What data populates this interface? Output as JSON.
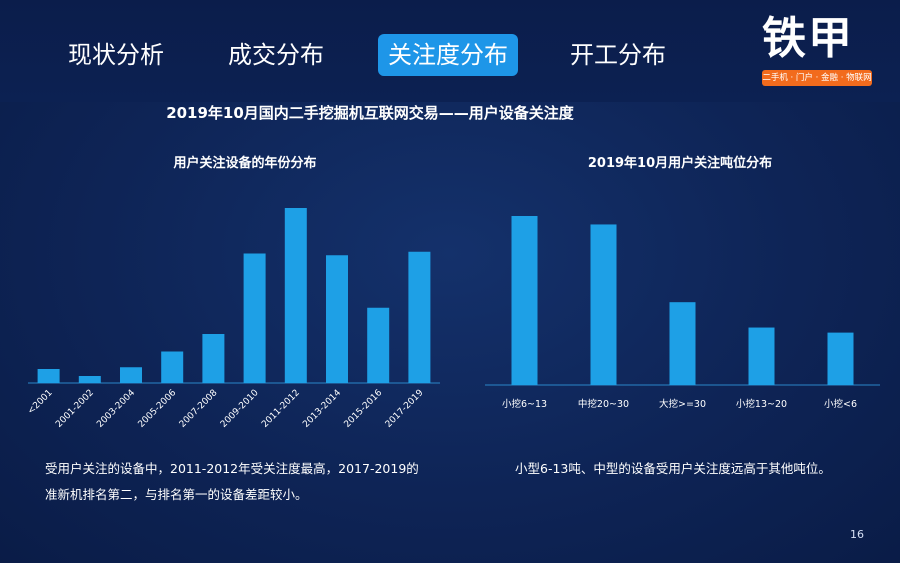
{
  "nav": {
    "tabs": [
      {
        "label": "现状分析"
      },
      {
        "label": "成交分布"
      },
      {
        "label": "关注度分布"
      },
      {
        "label": "开工分布"
      }
    ],
    "active_index": 2
  },
  "logo": {
    "name": "铁甲",
    "tagline": "二手机 · 门户 · 金融 · 物联网"
  },
  "main_title": "2019年10月国内二手挖掘机互联网交易——用户设备关注度",
  "chart_data": [
    {
      "type": "bar",
      "title": "用户关注设备的年份分布",
      "categories": [
        "<2001",
        "2001-2002",
        "2003-2004",
        "2005-2006",
        "2007-2008",
        "2009-2010",
        "2011-2012",
        "2013-2014",
        "2015-2016",
        "2017-2019"
      ],
      "values": [
        8,
        4,
        9,
        18,
        28,
        74,
        100,
        73,
        43,
        75
      ],
      "ylim": [
        0,
        100
      ],
      "xlabel": "",
      "ylabel": "",
      "grid": false,
      "color": "#1ea0e6"
    },
    {
      "type": "bar",
      "title": "2019年10月用户关注吨位分布",
      "categories": [
        "小挖6~13",
        "中挖20~30",
        "大挖>=30",
        "小挖13~20",
        "小挖<6"
      ],
      "values": [
        100,
        95,
        49,
        34,
        31
      ],
      "ylim": [
        0,
        100
      ],
      "xlabel": "",
      "ylabel": "",
      "grid": false,
      "color": "#1ea0e6"
    }
  ],
  "captions": {
    "left_line1": "受用户关注的设备中，2011-2012年受关注度最高，2017-2019的",
    "left_line2": "准新机排名第二，与排名第一的设备差距较小。",
    "right": "小型6-13吨、中型的设备受用户关注度远高于其他吨位。"
  },
  "page_number": "16"
}
